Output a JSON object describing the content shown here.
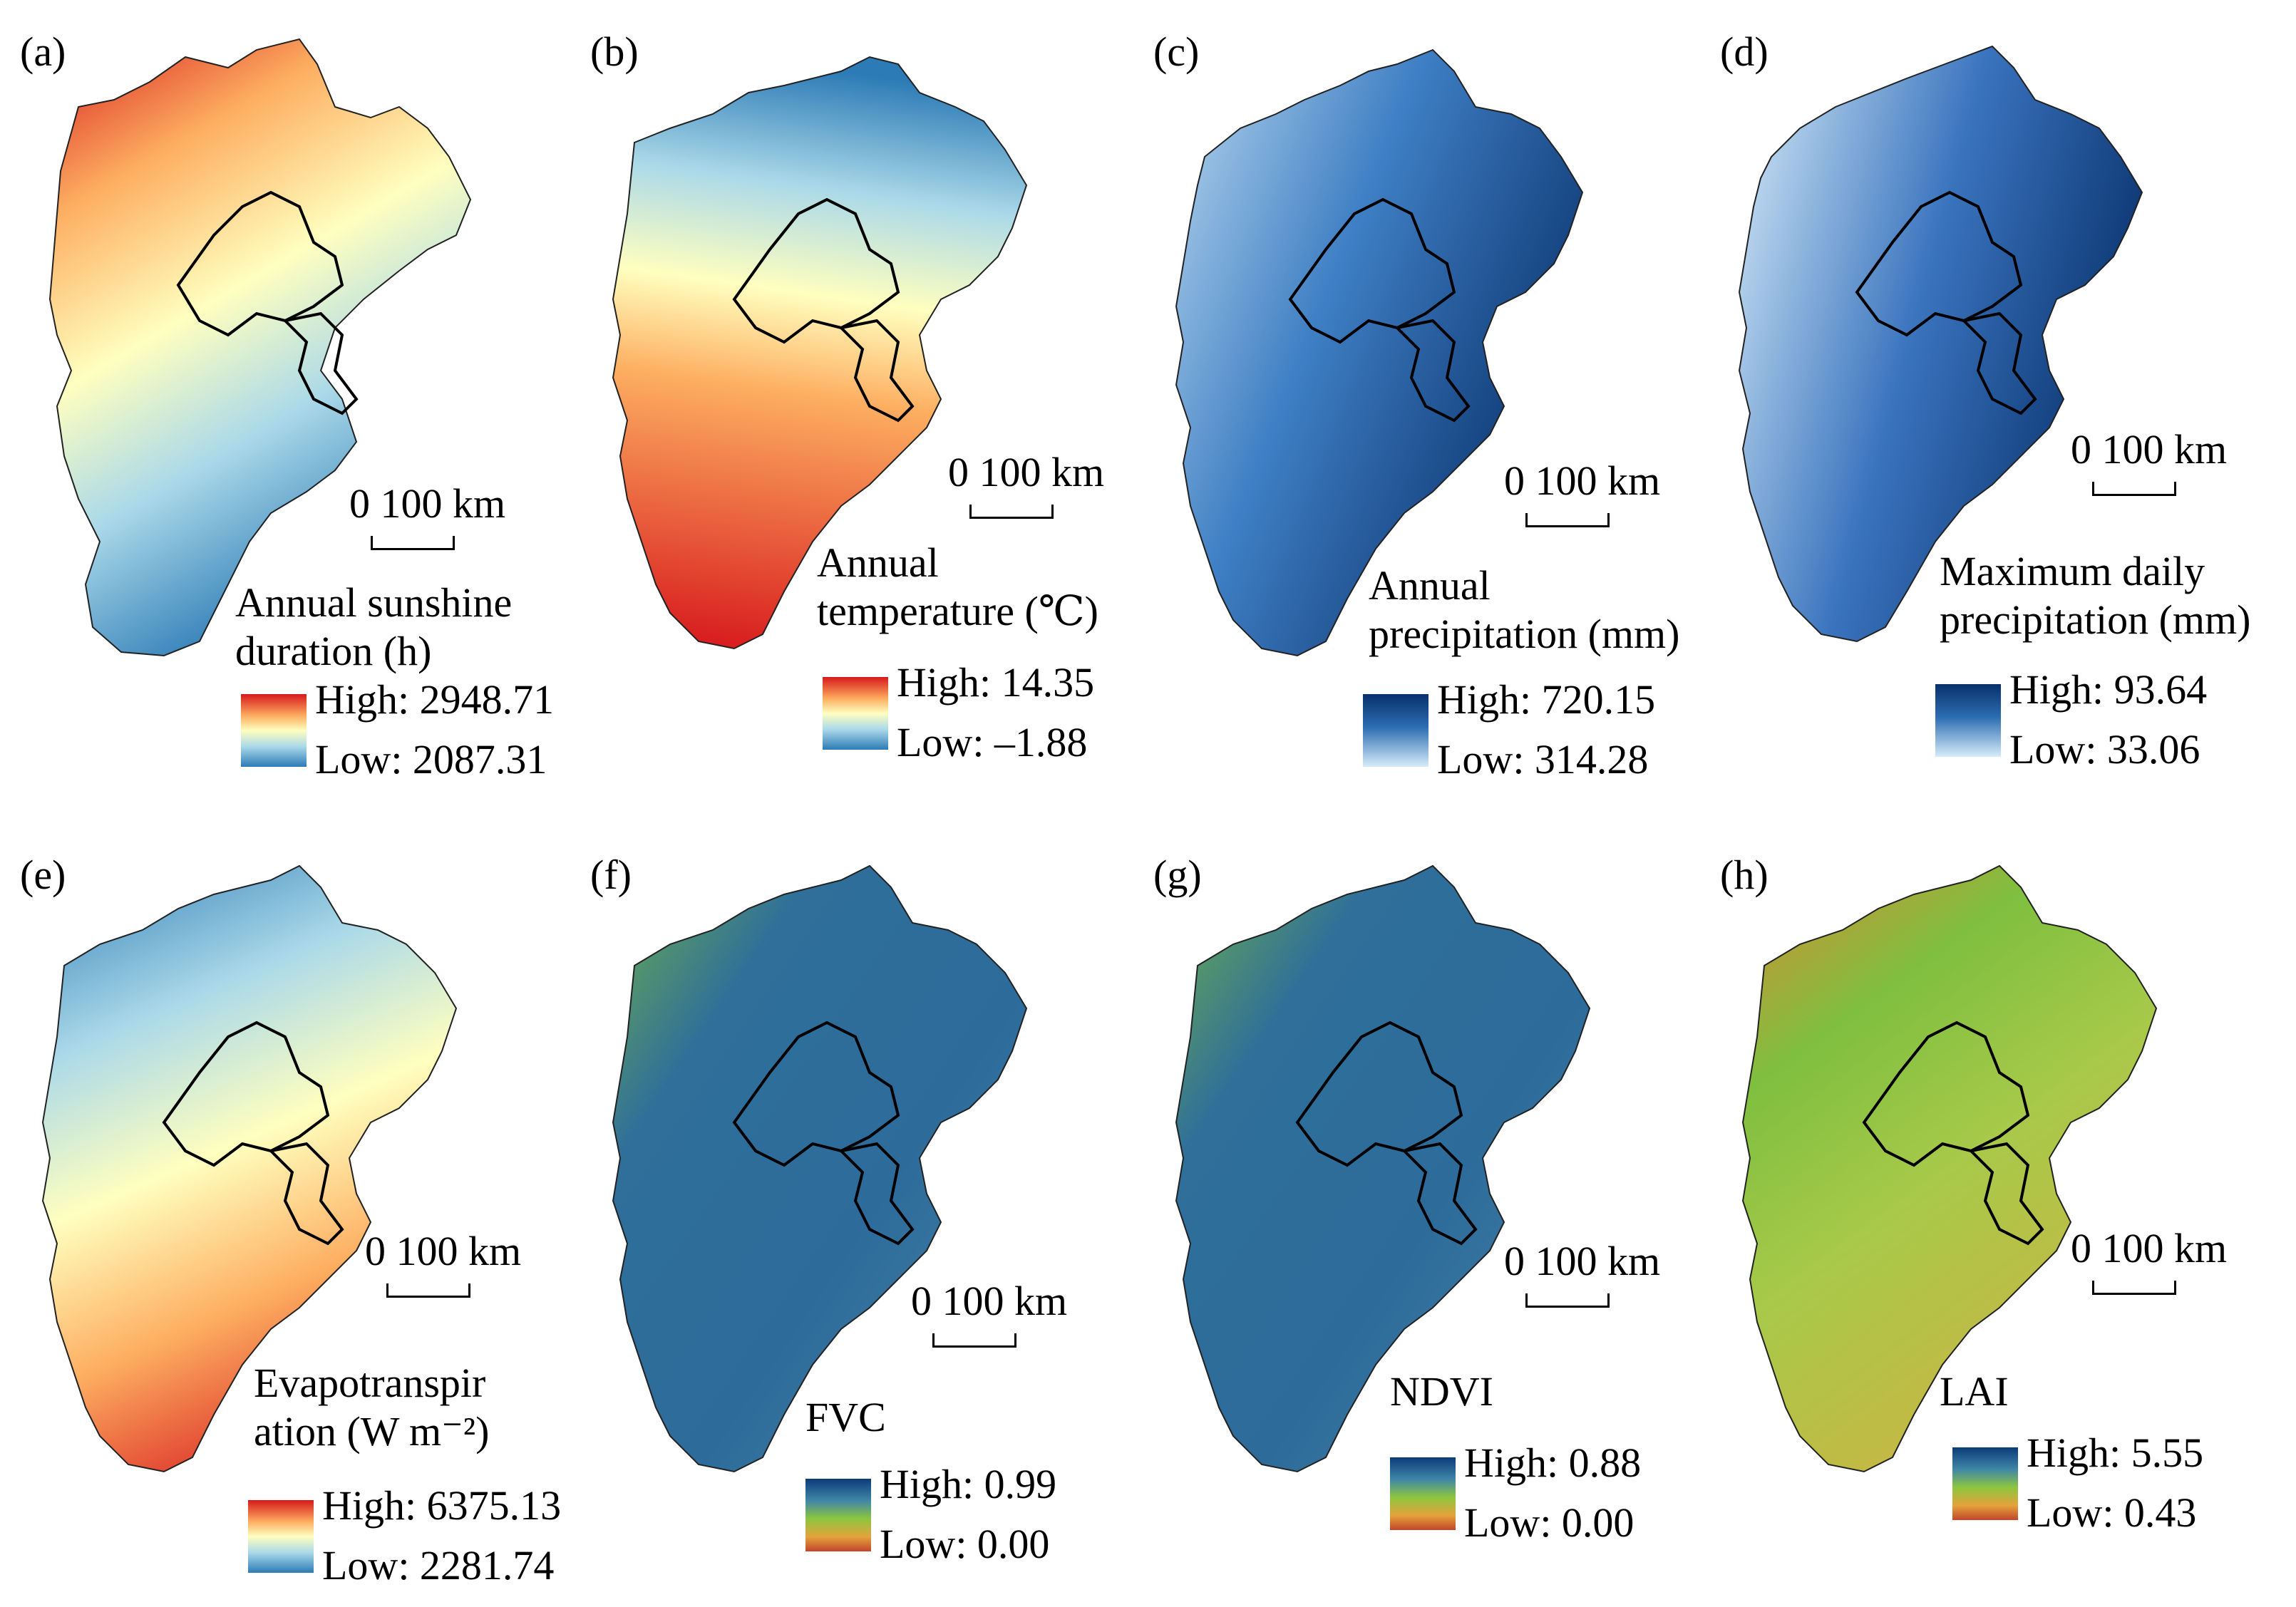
{
  "panels": [
    {
      "label": "(a)",
      "title_lines": [
        "Annual sunshine",
        "duration (h)"
      ],
      "high": "High: 2948.71",
      "low": "Low: 2087.31",
      "ramp": "rainbow"
    },
    {
      "label": "(b)",
      "title_lines": [
        "Annual",
        "temperature (℃)"
      ],
      "high": "High: 14.35",
      "low": "Low: –1.88",
      "ramp": "rainbow"
    },
    {
      "label": "(c)",
      "title_lines": [
        "Annual",
        "precipitation (mm)"
      ],
      "high": "High: 720.15",
      "low": "Low: 314.28",
      "ramp": "blues"
    },
    {
      "label": "(d)",
      "title_lines": [
        "Maximum daily",
        "precipitation (mm)"
      ],
      "high": "High: 93.64",
      "low": "Low: 33.06",
      "ramp": "blues"
    },
    {
      "label": "(e)",
      "title_lines": [
        "Evapotranspir",
        "ation (W m⁻²)"
      ],
      "high": "High: 6375.13",
      "low": "Low: 2281.74",
      "ramp": "rainbow"
    },
    {
      "label": "(f)",
      "title_lines": [
        "FVC"
      ],
      "high": "High: 0.99",
      "low": "Low: 0.00",
      "ramp": "veg"
    },
    {
      "label": "(g)",
      "title_lines": [
        "NDVI"
      ],
      "high": "High: 0.88",
      "low": "Low: 0.00",
      "ramp": "veg"
    },
    {
      "label": "(h)",
      "title_lines": [
        "LAI"
      ],
      "high": "High: 5.55",
      "low": "Low: 0.43",
      "ramp": "veg"
    }
  ],
  "scale_bar": "0 100 km",
  "colors": {
    "rainbow": [
      "#d7191c",
      "#fdae61",
      "#ffffbf",
      "#abd9e9",
      "#2c7bb6"
    ],
    "blues": [
      "#08306b",
      "#2b6cb0",
      "#6aa3d8",
      "#cfe6f6"
    ],
    "veg": [
      "#0b3b78",
      "#3f86a8",
      "#8dc63f",
      "#e4a33b",
      "#c2452a"
    ],
    "boundary": "#000000"
  },
  "icons": {
    "map": "region-map"
  }
}
